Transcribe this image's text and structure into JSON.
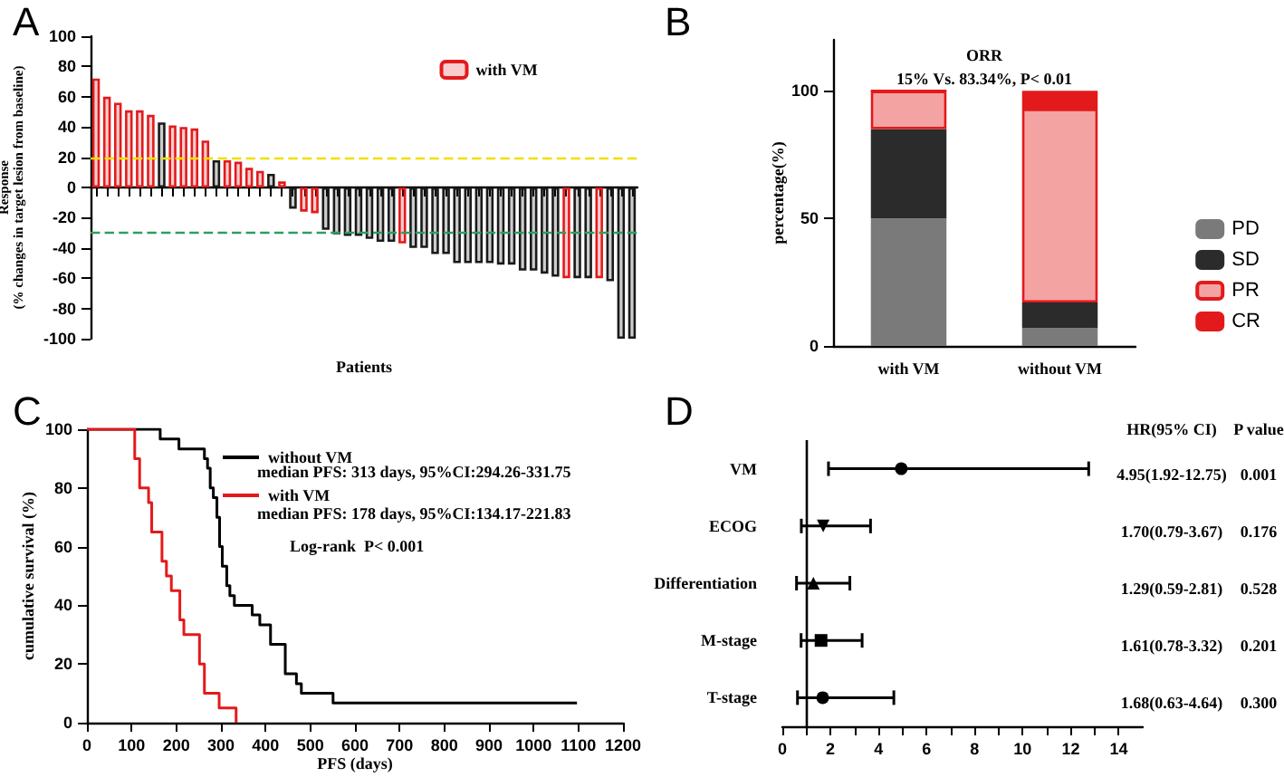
{
  "chart_data": [
    {
      "type": "bar",
      "title": "A",
      "xlabel": "Patients",
      "ylabel": "Response\n(% changes in target lesion from baseline)",
      "categories": [
        null,
        null,
        null,
        null,
        null,
        null,
        null,
        null,
        null,
        null,
        null,
        null,
        null,
        null,
        null,
        null,
        null,
        null,
        null,
        null,
        null,
        null,
        null,
        null,
        null,
        null,
        null,
        null,
        null,
        null,
        null,
        null,
        null,
        null,
        null,
        null,
        null,
        null,
        null,
        null,
        null,
        null,
        null,
        null,
        null,
        null,
        null,
        null,
        null,
        null
      ],
      "series": [
        {
          "name": "with VM",
          "color": "#e31a1c",
          "values": [
            72,
            60,
            56,
            51,
            51,
            48,
            null,
            41,
            40,
            39,
            31,
            null,
            18,
            17,
            13,
            11,
            null,
            4,
            null,
            -16,
            -17,
            null,
            null,
            null,
            null,
            null,
            null,
            null,
            -37,
            null,
            null,
            null,
            null,
            null,
            null,
            null,
            null,
            null,
            null,
            null,
            null,
            null,
            null,
            -60,
            null,
            null,
            -60,
            null,
            null,
            null
          ]
        },
        {
          "color": "#1a1a1a",
          "values": [
            null,
            null,
            null,
            null,
            null,
            null,
            43,
            null,
            null,
            null,
            null,
            18,
            null,
            null,
            null,
            null,
            9,
            null,
            -14,
            null,
            null,
            -28,
            -31,
            -32,
            -32,
            -34,
            -36,
            -36,
            null,
            -40,
            -40,
            -44,
            -44,
            -50,
            -50,
            -50,
            -50,
            -51,
            -51,
            -55,
            -55,
            -57,
            -59,
            null,
            -60,
            -60,
            null,
            -62,
            -100,
            -100
          ]
        }
      ],
      "stacked": true,
      "ylim": [
        -100,
        100
      ],
      "yticks": [
        -100,
        -80,
        -60,
        -40,
        -20,
        0,
        20,
        40,
        60,
        80,
        100
      ],
      "ref_lines": [
        {
          "axis": "y",
          "value": 20,
          "color": "#f0e000",
          "line_style": "dashed"
        },
        {
          "axis": "y",
          "value": -30,
          "color": "#2e9e5b",
          "line_style": "dashed"
        }
      ],
      "legend": "top right",
      "tick_labels": "y",
      "grid": false
    },
    {
      "type": "bar",
      "title": "B",
      "ylabel": "percentage(%)",
      "categories": [
        "with VM",
        "without VM"
      ],
      "series": [
        {
          "name": "PD",
          "color": "#7a7a7a",
          "values": [
            50,
            7
          ]
        },
        {
          "name": "SD",
          "color": "#2b2b2b",
          "values": [
            35,
            10
          ]
        },
        {
          "name": "PR",
          "color": "#f4a3a3",
          "values": [
            15,
            76
          ]
        },
        {
          "name": "CR",
          "color": "#e31a1c",
          "values": [
            0,
            7
          ]
        }
      ],
      "stacked": true,
      "ylim": [
        0,
        120
      ],
      "yticks": [
        0,
        50,
        100
      ],
      "annotations": [
        "ORR",
        "15% Vs. 83.34%, P< 0.01"
      ],
      "legend": "right",
      "grid": false
    },
    {
      "type": "step",
      "title": "C",
      "xlabel": "PFS (days)",
      "ylabel": "cumulative survival (%)",
      "series": [
        {
          "name": "without VM",
          "color": "#000000",
          "x": [
            0,
            164,
            206,
            263,
            270,
            276,
            283,
            291,
            297,
            303,
            313,
            320,
            330,
            370,
            387,
            411,
            444,
            469,
            480,
            551,
            1097
          ],
          "values": [
            100,
            96.7,
            93.3,
            90,
            86.7,
            80,
            76.7,
            70,
            60,
            53.3,
            46.7,
            43.3,
            40,
            36.7,
            33.3,
            26.7,
            16.7,
            13.3,
            10,
            6.7,
            6.7
          ]
        },
        {
          "name": "with VM",
          "color": "#e31a1c",
          "x": [
            0,
            107,
            118,
            138,
            145,
            168,
            178,
            189,
            208,
            217,
            252,
            263,
            296,
            334
          ],
          "values": [
            100,
            90,
            80,
            75,
            65,
            55,
            50,
            45,
            35,
            30,
            20,
            10,
            5,
            0
          ]
        }
      ],
      "xlim": [
        0,
        1200
      ],
      "xticks": [
        0,
        100,
        200,
        300,
        400,
        500,
        600,
        700,
        800,
        900,
        1000,
        1100,
        1200
      ],
      "ylim": [
        0,
        100
      ],
      "yticks": [
        0,
        20,
        40,
        60,
        80,
        100
      ],
      "annotations": [
        "median PFS: 313 days, 95%CI:294.26-331.75",
        "median PFS: 178 days, 95%CI:134.17-221.83",
        "Log-rank  P< 0.001"
      ],
      "legend": "top",
      "grid": false
    },
    {
      "type": "scatter",
      "title": "D",
      "orientation": "horizontal",
      "categories": [
        "VM",
        "ECOG",
        "Differentiation",
        "M-stage",
        "T-stage"
      ],
      "series": [
        {
          "color": "#000000",
          "marker": "circle",
          "values": [
            4.95,
            null,
            null,
            null,
            null
          ],
          "errors": [
            [
              1.92,
              12.75
            ],
            null,
            null,
            null,
            null
          ]
        },
        {
          "color": "#000000",
          "marker": "triangle-down",
          "values": [
            null,
            1.7,
            null,
            null,
            null
          ],
          "errors": [
            null,
            [
              0.79,
              3.67
            ],
            null,
            null,
            null
          ]
        },
        {
          "color": "#000000",
          "marker": "triangle",
          "values": [
            null,
            null,
            1.29,
            null,
            null
          ],
          "errors": [
            null,
            null,
            [
              0.59,
              2.81
            ],
            null,
            null
          ]
        },
        {
          "color": "#000000",
          "marker": "square",
          "values": [
            null,
            null,
            null,
            1.61,
            null
          ],
          "errors": [
            null,
            null,
            null,
            [
              0.78,
              3.32
            ],
            null
          ]
        },
        {
          "color": "#000000",
          "marker": "circle",
          "values": [
            null,
            null,
            null,
            null,
            1.68
          ],
          "errors": [
            null,
            null,
            null,
            null,
            [
              0.63,
              4.64
            ]
          ]
        }
      ],
      "xlim": [
        0,
        15
      ],
      "xticks": [
        0,
        {
          "value": 1,
          "label": null
        },
        2,
        {
          "value": 3,
          "label": null
        },
        4,
        {
          "value": 5,
          "label": null
        },
        6,
        {
          "value": 7,
          "label": null
        },
        8,
        {
          "value": 9,
          "label": null
        },
        10,
        {
          "value": 11,
          "label": null
        },
        12,
        {
          "value": 13,
          "label": null
        },
        14
      ],
      "ref_lines": [
        {
          "axis": "x",
          "value": 1
        }
      ],
      "annotations": [
        "HR(95% CI)",
        "P value",
        "4.95(1.92-12.75)",
        "0.001",
        "1.70(0.79-3.67)",
        "0.176",
        "1.29(0.59-2.81)",
        "0.528",
        "1.61(0.78-3.32)",
        "0.201",
        "1.68(0.63-4.64)",
        "0.300"
      ],
      "grid": false
    }
  ]
}
